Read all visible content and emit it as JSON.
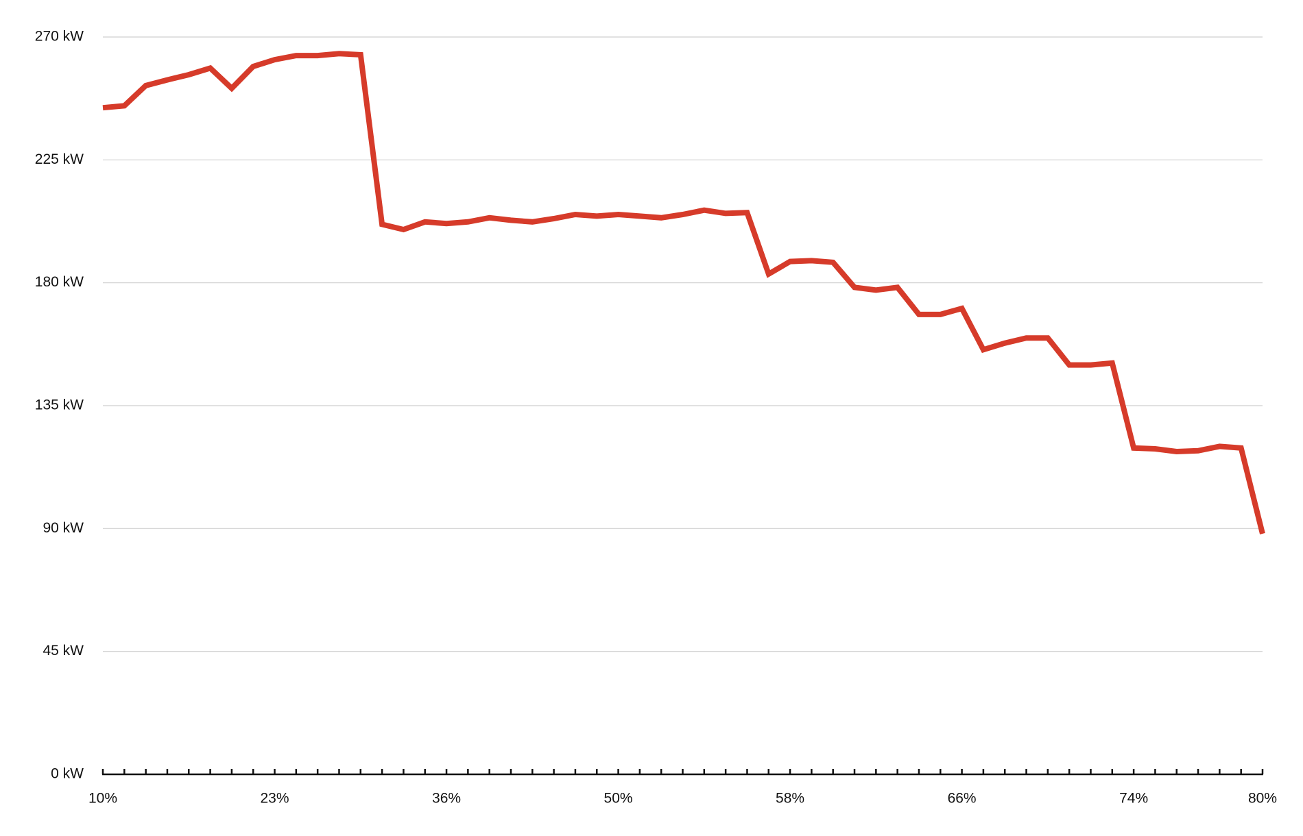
{
  "chart_data": {
    "type": "line",
    "categories": [
      "10%",
      null,
      null,
      null,
      null,
      null,
      null,
      null,
      "23%",
      null,
      null,
      null,
      null,
      null,
      null,
      null,
      "36%",
      null,
      null,
      null,
      null,
      null,
      null,
      null,
      "50%",
      null,
      null,
      null,
      null,
      null,
      null,
      null,
      "58%",
      null,
      null,
      null,
      null,
      null,
      null,
      null,
      "66%",
      null,
      null,
      null,
      null,
      null,
      null,
      null,
      "74%",
      null,
      null,
      null,
      null,
      null,
      "80%"
    ],
    "values": [
      244.1,
      244.8,
      252.2,
      254.3,
      256.2,
      258.6,
      251.2,
      259.2,
      261.7,
      263.2,
      263.2,
      263.9,
      263.5,
      201.4,
      199.5,
      202.3,
      201.7,
      202.3,
      203.8,
      202.9,
      202.3,
      203.5,
      205.0,
      204.4,
      205.0,
      204.4,
      203.8,
      205.0,
      206.6,
      205.4,
      205.7,
      183.2,
      187.8,
      188.1,
      187.5,
      178.3,
      177.3,
      178.3,
      168.4,
      168.4,
      170.6,
      155.5,
      157.9,
      159.8,
      159.8,
      149.9,
      149.9,
      150.6,
      119.5,
      119.2,
      118.2,
      118.5,
      120.1,
      119.5,
      88.1
    ],
    "color": "#d63b2a",
    "ylim": [
      0,
      270
    ],
    "yticks": [
      {
        "value": 0,
        "label": "0 kW"
      },
      {
        "value": 45,
        "label": "45 kW"
      },
      {
        "value": 90,
        "label": "90 kW"
      },
      {
        "value": 135,
        "label": "135 kW"
      },
      {
        "value": 180,
        "label": "180 kW"
      },
      {
        "value": 225,
        "label": "225 kW"
      },
      {
        "value": 270,
        "label": "270 kW"
      }
    ],
    "grid": true
  }
}
